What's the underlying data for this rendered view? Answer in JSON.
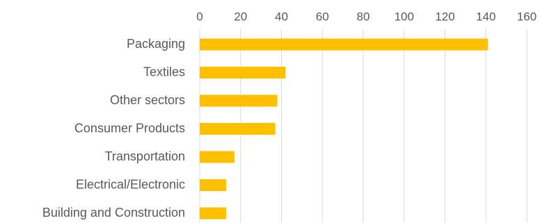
{
  "chart_data": {
    "type": "bar",
    "orientation": "horizontal",
    "title": "",
    "xlabel": "",
    "ylabel": "",
    "categories": [
      "Packaging",
      "Textiles",
      "Other sectors",
      "Consumer Products",
      "Transportation",
      "Electrical/Electronic",
      "Building and Construction"
    ],
    "values": [
      141,
      42,
      38,
      37,
      17,
      13,
      13
    ],
    "xlim": [
      0,
      160
    ],
    "xticks": [
      0,
      20,
      40,
      60,
      80,
      100,
      120,
      140,
      160
    ],
    "x_axis_position": "top",
    "grid": true,
    "legend": "none",
    "bar_color": "#FFC000",
    "grid_color": "#D9D9D9",
    "text_color": "#595959"
  }
}
